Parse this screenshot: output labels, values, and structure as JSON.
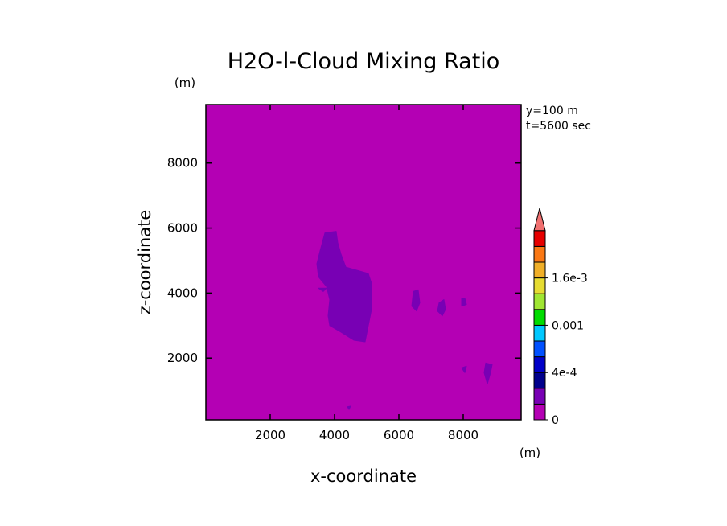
{
  "chart_data": {
    "type": "heatmap",
    "title": "H2O-l-Cloud Mixing Ratio",
    "xlabel": "x-coordinate",
    "ylabel": "z-coordinate",
    "x_unit": "(m)",
    "y_unit": "(m)",
    "xlim": [
      0,
      9800
    ],
    "ylim": [
      100,
      9800
    ],
    "x_ticks": [
      2000,
      4000,
      6000,
      8000
    ],
    "y_ticks": [
      2000,
      4000,
      6000,
      8000
    ],
    "x_tick_labels": [
      "2000",
      "4000",
      "6000",
      "8000"
    ],
    "y_tick_labels": [
      "2000",
      "4000",
      "6000",
      "8000"
    ],
    "annotations": [
      "y=100 m",
      "t=5600 sec"
    ],
    "background_level_color": "#b400b4",
    "colorbar": {
      "colors": [
        "#b400b4",
        "#7800b4",
        "#00008c",
        "#0000c8",
        "#0050ff",
        "#00c8ff",
        "#00dc00",
        "#a0e632",
        "#e6dc32",
        "#f0af28",
        "#fa7814",
        "#e60000",
        "#f07070"
      ],
      "labels": [
        {
          "level": 0,
          "text": "0"
        },
        {
          "level": 3,
          "text": "4e-4"
        },
        {
          "level": 6,
          "text": "0.001"
        },
        {
          "level": 9,
          "text": "1.6e-3"
        }
      ],
      "extend": "max"
    },
    "regions": [
      {
        "level": 1,
        "color": "#7800b4",
        "polygon": [
          [
            3700,
            5850
          ],
          [
            4050,
            5900
          ],
          [
            4100,
            5550
          ],
          [
            4200,
            5200
          ],
          [
            4350,
            4800
          ],
          [
            4700,
            4700
          ],
          [
            5050,
            4600
          ],
          [
            5150,
            4300
          ],
          [
            5150,
            3500
          ],
          [
            5050,
            3000
          ],
          [
            4950,
            2500
          ],
          [
            4600,
            2550
          ],
          [
            4200,
            2800
          ],
          [
            3850,
            3000
          ],
          [
            3800,
            3300
          ],
          [
            3850,
            3800
          ],
          [
            3750,
            4200
          ],
          [
            3500,
            4500
          ],
          [
            3450,
            4900
          ],
          [
            3550,
            5300
          ]
        ]
      },
      {
        "level": 1,
        "color": "#7800b4",
        "polygon": [
          [
            3500,
            4150
          ],
          [
            3750,
            4150
          ],
          [
            3650,
            4050
          ]
        ]
      },
      {
        "level": 1,
        "color": "#7800b4",
        "polygon": [
          [
            6450,
            4050
          ],
          [
            6600,
            4100
          ],
          [
            6650,
            3700
          ],
          [
            6550,
            3450
          ],
          [
            6400,
            3600
          ]
        ]
      },
      {
        "level": 1,
        "color": "#7800b4",
        "polygon": [
          [
            7250,
            3700
          ],
          [
            7400,
            3800
          ],
          [
            7450,
            3500
          ],
          [
            7350,
            3300
          ],
          [
            7200,
            3450
          ]
        ]
      },
      {
        "level": 1,
        "color": "#7800b4",
        "polygon": [
          [
            7950,
            3850
          ],
          [
            8050,
            3850
          ],
          [
            8100,
            3650
          ],
          [
            7950,
            3600
          ]
        ]
      },
      {
        "level": 1,
        "color": "#7800b4",
        "polygon": [
          [
            7950,
            1700
          ],
          [
            8100,
            1750
          ],
          [
            8050,
            1550
          ]
        ]
      },
      {
        "level": 1,
        "color": "#7800b4",
        "polygon": [
          [
            8700,
            1850
          ],
          [
            8900,
            1800
          ],
          [
            8850,
            1550
          ],
          [
            8750,
            1200
          ],
          [
            8650,
            1550
          ]
        ]
      },
      {
        "level": 1,
        "color": "#7800b4",
        "polygon": [
          [
            4400,
            500
          ],
          [
            4500,
            520
          ],
          [
            4450,
            420
          ]
        ]
      }
    ]
  }
}
